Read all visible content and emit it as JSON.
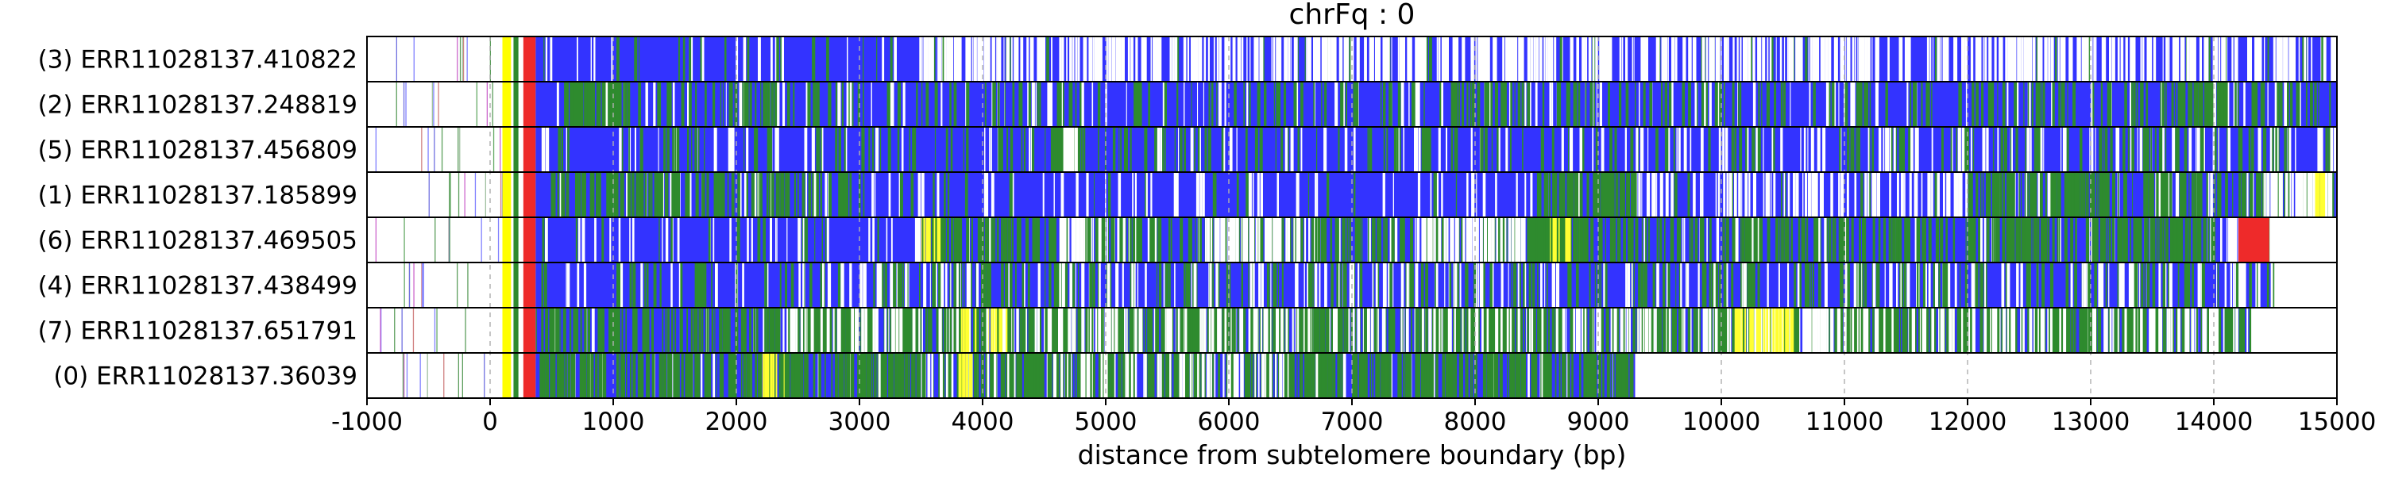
{
  "chart_data": {
    "type": "heatmap",
    "title": "chrFq : 0",
    "xlabel": "distance from subtelomere boundary (bp)",
    "ylabel": "",
    "xlim": [
      -1000,
      15000
    ],
    "xticks": [
      -1000,
      0,
      1000,
      2000,
      3000,
      4000,
      5000,
      6000,
      7000,
      8000,
      9000,
      10000,
      11000,
      12000,
      13000,
      14000,
      15000
    ],
    "xtick_labels": [
      "-1000",
      "0",
      "1000",
      "2000",
      "3000",
      "4000",
      "5000",
      "6000",
      "7000",
      "8000",
      "9000",
      "10000",
      "11000",
      "12000",
      "13000",
      "14000",
      "15000"
    ],
    "grid": "vertical dashed at x ticks",
    "colors": {
      "background_repeat": "#3333ff",
      "variant_repeat": "#2e8b2e",
      "gap": "#ffffff",
      "subtelomere_marker_yellow": "#ffff00",
      "subtelomere_marker_red": "#ee2a2a"
    },
    "reads": [
      {
        "label": "(3) ERR11028137.410822",
        "start": -1000,
        "end": 15000,
        "green": [],
        "white": [
          [
            3500,
            15000,
            0.35
          ]
        ],
        "yellow": [],
        "red": []
      },
      {
        "label": "(2) ERR11028137.248819",
        "start": -870,
        "end": 15000,
        "green": [
          [
            600,
            1100,
            0.8
          ],
          [
            1000,
            15000,
            0.12
          ],
          [
            13700,
            14100,
            0.7
          ]
        ],
        "white": [],
        "yellow": [],
        "red": []
      },
      {
        "label": "(5) ERR11028137.456809",
        "start": -1000,
        "end": 15000,
        "green": [
          [
            4550,
            4800,
            0.9
          ],
          [
            1000,
            15000,
            0.08
          ]
        ],
        "white": [
          [
            4650,
            4750,
            0.8
          ],
          [
            9000,
            15000,
            0.05
          ]
        ],
        "yellow": [],
        "red": []
      },
      {
        "label": "(1) ERR11028137.185899",
        "start": -870,
        "end": 15000,
        "green": [
          [
            8500,
            9300,
            0.6
          ],
          [
            12000,
            13000,
            0.6
          ],
          [
            500,
            3000,
            0.35
          ],
          [
            13000,
            15000,
            0.4
          ]
        ],
        "white": [
          [
            14400,
            15000,
            0.5
          ],
          [
            9300,
            12000,
            0.2
          ]
        ],
        "yellow": [
          [
            14800,
            14900,
            1.0
          ]
        ],
        "red": []
      },
      {
        "label": "(6) ERR11028137.469505",
        "start": -1000,
        "end": 14450,
        "green": [
          [
            3500,
            14000,
            0.35
          ],
          [
            8400,
            8800,
            0.9
          ],
          [
            12300,
            12500,
            0.9
          ]
        ],
        "white": [
          [
            5800,
            6700,
            0.5
          ],
          [
            7500,
            8400,
            0.45
          ],
          [
            4600,
            5200,
            0.3
          ],
          [
            14100,
            14250,
            0.6
          ]
        ],
        "yellow": [
          [
            3500,
            3650,
            0.6
          ],
          [
            8600,
            8800,
            0.4
          ]
        ],
        "red": [
          [
            14200,
            14450,
            1.0
          ]
        ]
      },
      {
        "label": "(4) ERR11028137.438499",
        "start": -1000,
        "end": 14500,
        "green": [
          [
            1000,
            14500,
            0.12
          ]
        ],
        "white": [
          [
            2500,
            14500,
            0.06
          ]
        ],
        "yellow": [],
        "red": []
      },
      {
        "label": "(7) ERR11028137.651791",
        "start": -1000,
        "end": 14300,
        "green": [
          [
            2400,
            14300,
            0.65
          ],
          [
            400,
            2400,
            0.3
          ]
        ],
        "white": [
          [
            2400,
            14300,
            0.2
          ],
          [
            10100,
            11000,
            0.4
          ]
        ],
        "yellow": [
          [
            10100,
            10600,
            0.5
          ],
          [
            3800,
            4200,
            0.3
          ]
        ],
        "red": []
      },
      {
        "label": "(0) ERR11028137.36039",
        "start": -900,
        "end": 9300,
        "green": [
          [
            400,
            9300,
            0.5
          ],
          [
            2200,
            2500,
            0.8
          ]
        ],
        "white": [
          [
            3500,
            6500,
            0.15
          ]
        ],
        "yellow": [
          [
            2200,
            2400,
            0.5
          ],
          [
            3800,
            3900,
            0.4
          ]
        ],
        "red": []
      }
    ]
  }
}
